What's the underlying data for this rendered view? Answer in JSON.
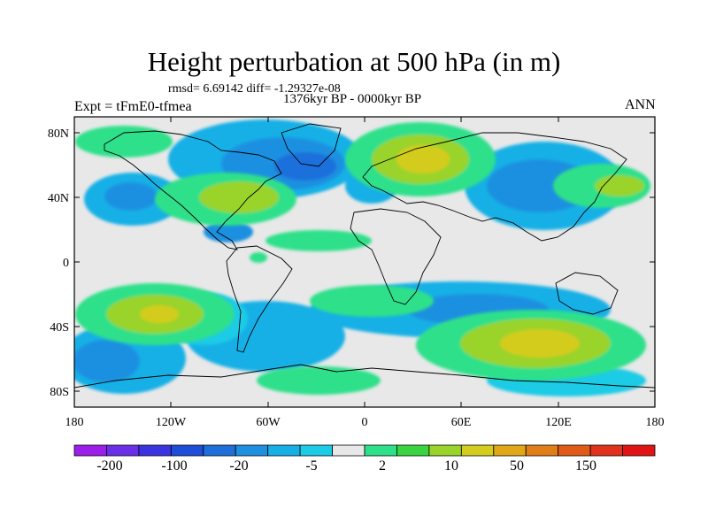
{
  "header": {
    "title": "Height perturbation at 500 hPa (in m)",
    "stats": "rmsd= 6.69142 diff= -1.29327e-08",
    "period": "1376kyr BP - 0000kyr BP",
    "experiment": "Expt = tFmE0-tfmea",
    "season": "ANN"
  },
  "axes": {
    "lat_labels": [
      "80N",
      "40N",
      "0",
      "40S",
      "80S"
    ],
    "lon_labels": [
      "180",
      "120W",
      "60W",
      "0",
      "60E",
      "120E",
      "180"
    ]
  },
  "colorbar": {
    "colors": [
      "#9b1fe8",
      "#6a2fe6",
      "#3c33e0",
      "#1e4ed8",
      "#1f6fdb",
      "#1e90e0",
      "#16b0e6",
      "#1ccbe6",
      "#e8e8e8",
      "#2ee08a",
      "#39d43f",
      "#9ad32a",
      "#d4cc1e",
      "#e0a818",
      "#e07f18",
      "#e05a18",
      "#e0321c",
      "#e01414"
    ],
    "labels": [
      "-200",
      "-100",
      "-20",
      "-5",
      "2",
      "10",
      "50",
      "150"
    ]
  }
}
